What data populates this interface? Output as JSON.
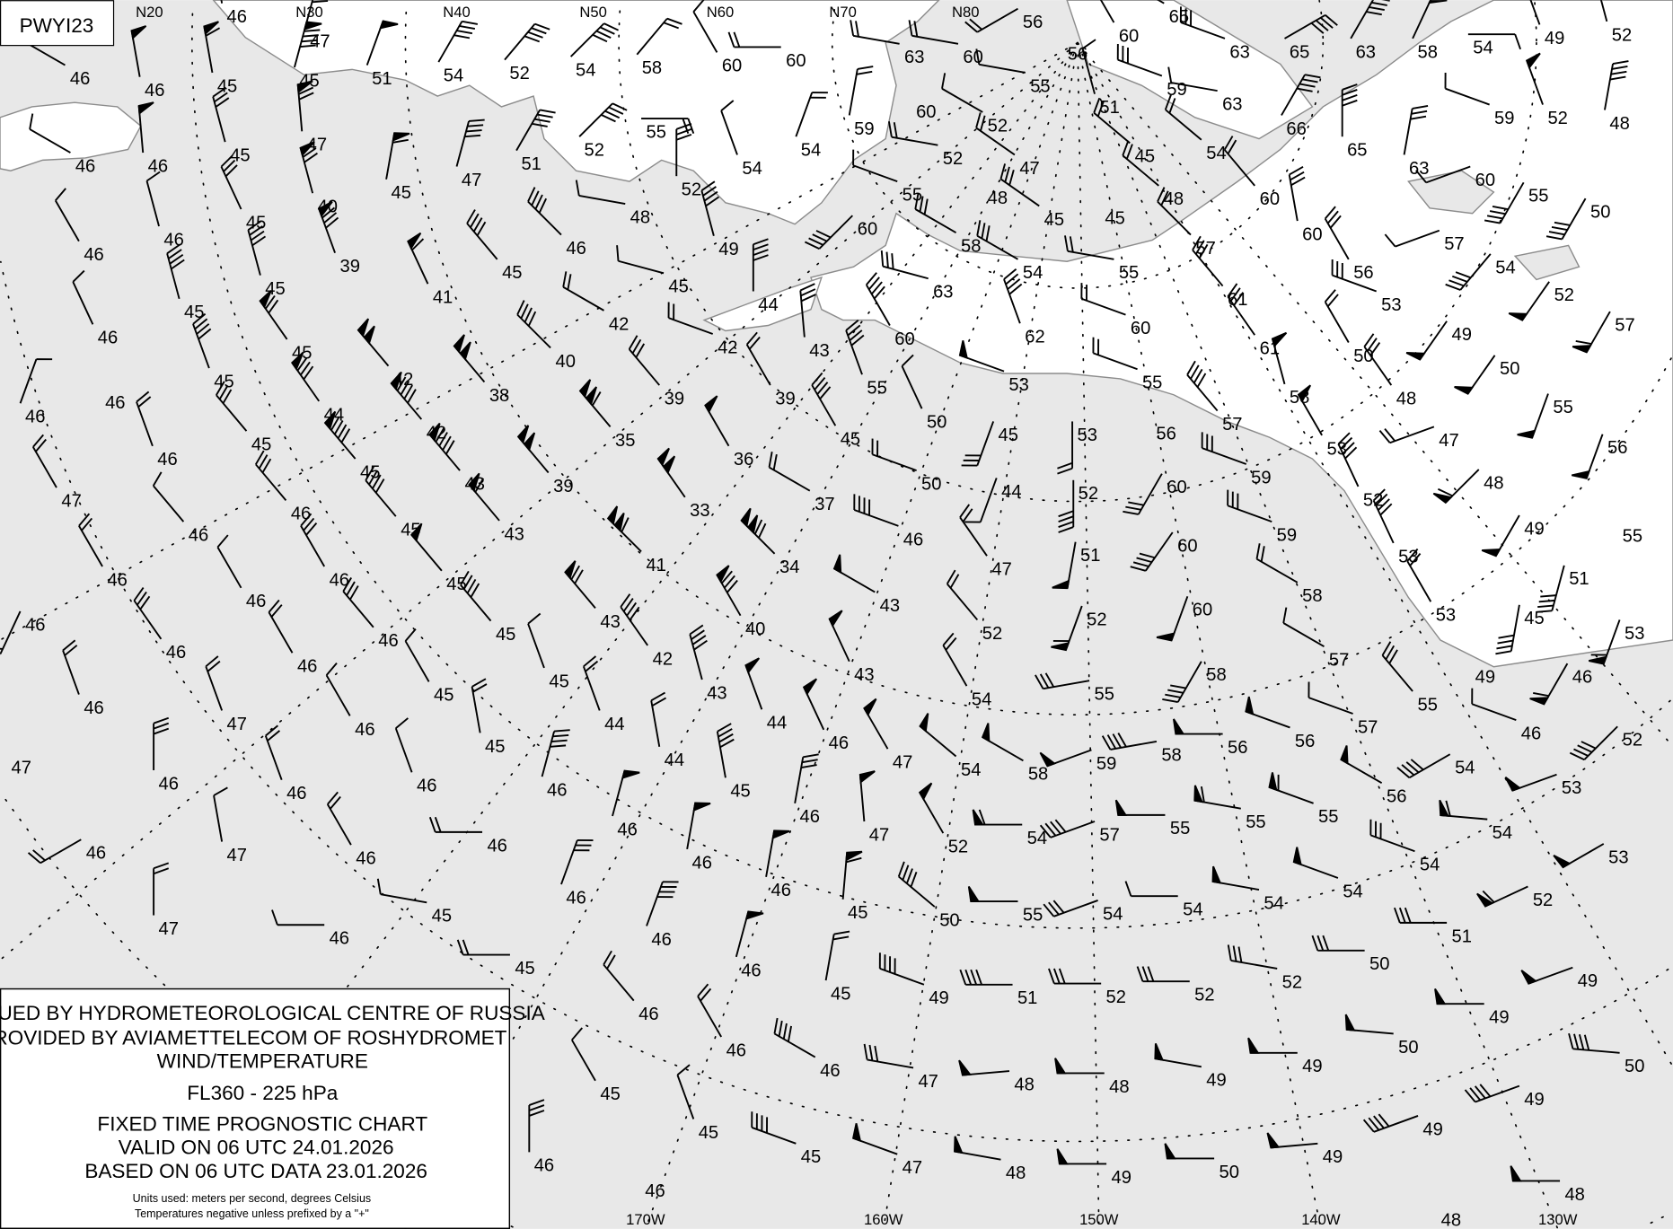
{
  "chart_id": "PWYI23",
  "legend": {
    "line1": "ISSUED BY HYDROMETEOROLOGICAL CENTRE OF RUSSIA",
    "line2": "PROVIDED BY AVIAMETTELECOM OF ROSHYDROMET",
    "line3": "WIND/TEMPERATURE",
    "level": "FL360 - 225 hPa",
    "chart_type": "FIXED TIME PROGNOSTIC CHART",
    "valid": "VALID ON 06 UTC 24.01.2026",
    "based": "BASED ON 06 UTC DATA 23.01.2026",
    "units1": "Units used: meters per second, degrees Celsius",
    "units2": "Temperatures negative unless prefixed by a \"+\""
  },
  "latitude_labels": [
    "N20",
    "N30",
    "N40",
    "N50",
    "N60",
    "N70",
    "N80"
  ],
  "longitude_labels": [
    "170W",
    "160W",
    "150W",
    "140W",
    "130W"
  ],
  "colors": {
    "sea": "#e8e8e8",
    "land": "#ffffff",
    "coast": "#8c8c8c",
    "ink": "#000000"
  },
  "stations_note_fields": [
    "temperature",
    "wind_dir_deg",
    "wind_speed_mps"
  ],
  "stations": [
    [
      "46",
      300,
      10
    ],
    [
      "46",
      350,
      25
    ],
    [
      "46",
      350,
      25
    ],
    [
      "45",
      350,
      30
    ],
    [
      "47",
      15,
      40
    ],
    [
      "45",
      15,
      45
    ],
    [
      "51",
      20,
      25
    ],
    [
      "54",
      30,
      20
    ],
    [
      "52",
      40,
      20
    ],
    [
      "54",
      45,
      20
    ],
    [
      "58",
      40,
      10
    ],
    [
      "60",
      330,
      5
    ],
    [
      "60",
      270,
      10
    ],
    [
      "63",
      280,
      10
    ],
    [
      "60",
      280,
      10
    ],
    [
      "56",
      240,
      10
    ],
    [
      "56",
      0,
      0
    ],
    [
      "60",
      330,
      20
    ],
    [
      "65",
      300,
      20
    ],
    [
      "63",
      290,
      15
    ],
    [
      "65",
      60,
      20
    ],
    [
      "63",
      30,
      20
    ],
    [
      "58",
      25,
      25
    ],
    [
      "54",
      90,
      5
    ],
    [
      "49",
      340,
      20
    ],
    [
      "52",
      345,
      25
    ],
    [
      "46",
      300,
      5
    ],
    [
      "46",
      355,
      25
    ],
    [
      "45",
      345,
      15
    ],
    [
      "47",
      355,
      35
    ],
    [
      "45",
      10,
      30
    ],
    [
      "47",
      15,
      20
    ],
    [
      "51",
      30,
      20
    ],
    [
      "52",
      45,
      20
    ],
    [
      "55",
      90,
      10
    ],
    [
      "54",
      340,
      5
    ],
    [
      "54",
      20,
      10
    ],
    [
      "59",
      10,
      10
    ],
    [
      "60",
      0,
      0
    ],
    [
      "52",
      300,
      5
    ],
    [
      "55",
      280,
      5
    ],
    [
      "52",
      280,
      10
    ],
    [
      "47",
      305,
      10
    ],
    [
      "51",
      345,
      5
    ],
    [
      "45",
      310,
      10
    ],
    [
      "59",
      290,
      15
    ],
    [
      "63",
      280,
      5
    ],
    [
      "54",
      310,
      10
    ],
    [
      "66",
      30,
      20
    ],
    [
      "65",
      0,
      20
    ],
    [
      "63",
      10,
      15
    ],
    [
      "59",
      290,
      5
    ],
    [
      "52",
      340,
      25
    ],
    [
      "48",
      10,
      20
    ],
    [
      "46",
      330,
      5
    ],
    [
      "46",
      345,
      5
    ],
    [
      "45",
      335,
      15
    ],
    [
      "40",
      345,
      35
    ],
    [
      "46",
      315,
      20
    ],
    [
      "48",
      280,
      5
    ],
    [
      "52",
      0,
      15
    ],
    [
      "49",
      345,
      20
    ],
    [
      "45",
      285,
      5
    ],
    [
      "60",
      225,
      20
    ],
    [
      "55",
      290,
      5
    ],
    [
      "58",
      300,
      15
    ],
    [
      "48",
      0,
      0
    ],
    [
      "45",
      305,
      15
    ],
    [
      "45",
      0,
      0
    ],
    [
      "48",
      310,
      10
    ],
    [
      "57",
      315,
      10
    ],
    [
      "60",
      320,
      10
    ],
    [
      "60",
      350,
      15
    ],
    [
      "56",
      330,
      15
    ],
    [
      "57",
      250,
      5
    ],
    [
      "60",
      250,
      5
    ],
    [
      "55",
      210,
      20
    ],
    [
      "50",
      210,
      20
    ],
    [
      "46",
      335,
      5
    ],
    [
      "45",
      345,
      20
    ],
    [
      "45",
      345,
      20
    ],
    [
      "39",
      340,
      40
    ],
    [
      "41",
      335,
      30
    ],
    [
      "45",
      320,
      20
    ],
    [
      "42",
      300,
      10
    ],
    [
      "40",
      315,
      20
    ],
    [
      "44",
      0,
      20
    ],
    [
      "42",
      290,
      10
    ],
    [
      "43",
      355,
      15
    ],
    [
      "60",
      330,
      20
    ],
    [
      "63",
      285,
      15
    ],
    [
      "54",
      300,
      15
    ],
    [
      "62",
      340,
      20
    ],
    [
      "55",
      280,
      10
    ],
    [
      "60",
      290,
      10
    ],
    [
      "61",
      320,
      15
    ],
    [
      "61",
      325,
      15
    ],
    [
      "53",
      290,
      15
    ],
    [
      "50",
      330,
      10
    ],
    [
      "49",
      215,
      25
    ],
    [
      "54",
      220,
      20
    ],
    [
      "52",
      215,
      25
    ],
    [
      "57",
      210,
      30
    ],
    [
      "46",
      20,
      5
    ],
    [
      "46",
      0,
      0
    ],
    [
      "45",
      340,
      20
    ],
    [
      "45",
      325,
      35
    ],
    [
      "42",
      320,
      50
    ],
    [
      "38",
      320,
      50
    ],
    [
      "39",
      320,
      15
    ],
    [
      "39",
      330,
      10
    ],
    [
      "55",
      340,
      20
    ],
    [
      "50",
      335,
      5
    ],
    [
      "45",
      200,
      15
    ],
    [
      "53",
      290,
      25
    ],
    [
      "55",
      290,
      10
    ],
    [
      "58",
      345,
      25
    ],
    [
      "48",
      325,
      15
    ],
    [
      "50",
      215,
      25
    ],
    [
      "55",
      200,
      25
    ],
    [
      "46",
      340,
      10
    ],
    [
      "45",
      320,
      15
    ],
    [
      "44",
      325,
      40
    ],
    [
      "42",
      320,
      45
    ],
    [
      "45",
      320,
      45
    ],
    [
      "43",
      320,
      45
    ],
    [
      "39",
      320,
      50
    ],
    [
      "35",
      320,
      55
    ],
    [
      "36",
      330,
      25
    ],
    [
      "45",
      330,
      20
    ],
    [
      "50",
      290,
      10
    ],
    [
      "44",
      200,
      5
    ],
    [
      "53",
      180,
      10
    ],
    [
      "52",
      180,
      20
    ],
    [
      "56",
      0,
      0
    ],
    [
      "59",
      290,
      15
    ],
    [
      "57",
      320,
      20
    ],
    [
      "53",
      330,
      25
    ],
    [
      "52",
      335,
      20
    ],
    [
      "47",
      250,
      10
    ],
    [
      "48",
      225,
      30
    ],
    [
      "56",
      200,
      25
    ],
    [
      "47",
      330,
      10
    ],
    [
      "46",
      320,
      5
    ],
    [
      "46",
      320,
      15
    ],
    [
      "45",
      320,
      20
    ],
    [
      "43",
      320,
      30
    ],
    [
      "33",
      325,
      50
    ],
    [
      "37",
      300,
      10
    ],
    [
      "46",
      290,
      20
    ],
    [
      "47",
      325,
      10
    ],
    [
      "51",
      190,
      25
    ],
    [
      "60",
      210,
      15
    ],
    [
      "60",
      215,
      20
    ],
    [
      "59",
      290,
      15
    ],
    [
      "53",
      335,
      20
    ],
    [
      "49",
      210,
      25
    ],
    [
      "55",
      0,
      0
    ],
    [
      "46",
      330,
      10
    ],
    [
      "46",
      330,
      5
    ],
    [
      "46",
      330,
      15
    ],
    [
      "45",
      320,
      25
    ],
    [
      "41",
      315,
      55
    ],
    [
      "34",
      315,
      60
    ],
    [
      "43",
      300,
      25
    ],
    [
      "52",
      320,
      10
    ],
    [
      "52",
      200,
      30
    ],
    [
      "60",
      200,
      25
    ],
    [
      "58",
      300,
      10
    ],
    [
      "53",
      330,
      10
    ],
    [
      "45",
      190,
      20
    ],
    [
      "51",
      195,
      20
    ],
    [
      "53",
      200,
      30
    ],
    [
      "46",
      205,
      10
    ],
    [
      "46",
      325,
      15
    ],
    [
      "46",
      330,
      10
    ],
    [
      "46",
      320,
      15
    ],
    [
      "45",
      320,
      20
    ],
    [
      "43",
      320,
      35
    ],
    [
      "42",
      325,
      20
    ],
    [
      "40",
      330,
      40
    ],
    [
      "43",
      335,
      25
    ],
    [
      "54",
      330,
      10
    ],
    [
      "55",
      260,
      15
    ],
    [
      "58",
      210,
      20
    ],
    [
      "57",
      300,
      5
    ],
    [
      "55",
      320,
      15
    ],
    [
      "49",
      0,
      0
    ],
    [
      "46",
      210,
      30
    ],
    [
      "46",
      340,
      10
    ],
    [
      "47",
      340,
      10
    ],
    [
      "45",
      330,
      5
    ],
    [
      "45",
      340,
      5
    ],
    [
      "44",
      340,
      10
    ],
    [
      "43",
      345,
      20
    ],
    [
      "44",
      340,
      25
    ],
    [
      "57",
      290,
      5
    ],
    [
      "46",
      290,
      5
    ],
    [
      "47",
      0,
      0
    ],
    [
      "46",
      330,
      5
    ],
    [
      "45",
      350,
      10
    ],
    [
      "44",
      350,
      10
    ],
    [
      "46",
      335,
      25
    ],
    [
      "47",
      330,
      25
    ],
    [
      "54",
      310,
      25
    ],
    [
      "58",
      300,
      25
    ],
    [
      "59",
      250,
      25
    ],
    [
      "58",
      260,
      20
    ],
    [
      "56",
      270,
      25
    ],
    [
      "56",
      290,
      25
    ],
    [
      "56",
      300,
      25
    ],
    [
      "54",
      240,
      20
    ],
    [
      "52",
      225,
      20
    ],
    [
      "46",
      0,
      15
    ],
    [
      "46",
      340,
      10
    ],
    [
      "46",
      340,
      5
    ],
    [
      "46",
      15,
      20
    ],
    [
      "46",
      15,
      25
    ],
    [
      "45",
      350,
      20
    ],
    [
      "46",
      10,
      15
    ],
    [
      "47",
      355,
      25
    ],
    [
      "52",
      330,
      25
    ],
    [
      "54",
      270,
      30
    ],
    [
      "57",
      250,
      20
    ],
    [
      "55",
      270,
      25
    ],
    [
      "55",
      280,
      30
    ],
    [
      "55",
      290,
      30
    ],
    [
      "54",
      275,
      30
    ],
    [
      "53",
      250,
      25
    ],
    [
      "46",
      240,
      10
    ],
    [
      "47",
      350,
      5
    ],
    [
      "46",
      330,
      10
    ],
    [
      "46",
      270,
      10
    ],
    [
      "46",
      10,
      25
    ],
    [
      "46",
      10,
      25
    ],
    [
      "45",
      5,
      30
    ],
    [
      "50",
      310,
      20
    ],
    [
      "55",
      270,
      25
    ],
    [
      "54",
      250,
      15
    ],
    [
      "54",
      270,
      5
    ],
    [
      "54",
      280,
      25
    ],
    [
      "54",
      290,
      25
    ],
    [
      "54",
      290,
      15
    ],
    [
      "52",
      245,
      30
    ],
    [
      "53",
      240,
      25
    ],
    [
      "47",
      0,
      10
    ],
    [
      "46",
      270,
      5
    ],
    [
      "45",
      280,
      5
    ],
    [
      "46",
      20,
      15
    ],
    [
      "46",
      20,
      20
    ],
    [
      "46",
      15,
      25
    ],
    [
      "45",
      10,
      10
    ],
    [
      "49",
      290,
      20
    ],
    [
      "51",
      270,
      20
    ],
    [
      "52",
      270,
      15
    ],
    [
      "52",
      270,
      15
    ],
    [
      "52",
      280,
      15
    ],
    [
      "50",
      270,
      15
    ],
    [
      "51",
      270,
      15
    ],
    [
      "49",
      250,
      25
    ],
    [
      "45",
      270,
      10
    ],
    [
      "46",
      320,
      10
    ],
    [
      "46",
      330,
      10
    ],
    [
      "46",
      300,
      20
    ],
    [
      "47",
      280,
      15
    ],
    [
      "48",
      265,
      25
    ],
    [
      "48",
      270,
      25
    ],
    [
      "49",
      280,
      25
    ],
    [
      "49",
      270,
      25
    ],
    [
      "50",
      275,
      25
    ],
    [
      "49",
      270,
      25
    ],
    [
      "50",
      275,
      20
    ],
    [
      "45",
      330,
      5
    ],
    [
      "45",
      340,
      5
    ],
    [
      "45",
      290,
      20
    ],
    [
      "47",
      290,
      25
    ],
    [
      "48",
      280,
      25
    ],
    [
      "49",
      270,
      25
    ],
    [
      "50",
      270,
      25
    ],
    [
      "49",
      265,
      25
    ],
    [
      "49",
      250,
      20
    ],
    [
      "49",
      250,
      20
    ],
    [
      "48",
      270,
      25
    ],
    [
      "46",
      0,
      15
    ],
    [
      "46",
      0,
      0
    ],
    [
      "48",
      0,
      0
    ]
  ]
}
